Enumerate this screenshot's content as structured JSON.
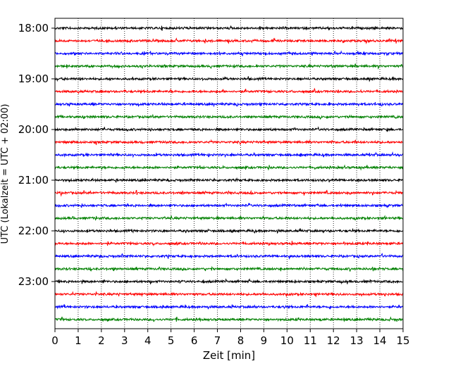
{
  "chart_data": {
    "type": "line",
    "title": "",
    "xlabel": "Zeit  [min]",
    "ylabel": "UTC (Lokalzeit = UTC + 02:00)",
    "xlim": [
      0,
      15
    ],
    "x_ticks": [
      0,
      1,
      2,
      3,
      4,
      5,
      6,
      7,
      8,
      9,
      10,
      11,
      12,
      13,
      14,
      15
    ],
    "y_start_time": "18:00",
    "trace_interval_minutes": 15,
    "y_tick_labels": [
      "18:00",
      "19:00",
      "20:00",
      "21:00",
      "22:00",
      "23:00"
    ],
    "grid": {
      "vertical_dotted": true
    },
    "trace_colors": [
      "#000000",
      "#ff0000",
      "#0000ff",
      "#008000"
    ],
    "traces": [
      {
        "start": "18:00",
        "color": "#000000"
      },
      {
        "start": "18:15",
        "color": "#ff0000"
      },
      {
        "start": "18:30",
        "color": "#0000ff"
      },
      {
        "start": "18:45",
        "color": "#008000"
      },
      {
        "start": "19:00",
        "color": "#000000"
      },
      {
        "start": "19:15",
        "color": "#ff0000"
      },
      {
        "start": "19:30",
        "color": "#0000ff"
      },
      {
        "start": "19:45",
        "color": "#008000"
      },
      {
        "start": "20:00",
        "color": "#000000"
      },
      {
        "start": "20:15",
        "color": "#ff0000"
      },
      {
        "start": "20:30",
        "color": "#0000ff"
      },
      {
        "start": "20:45",
        "color": "#008000"
      },
      {
        "start": "21:00",
        "color": "#000000"
      },
      {
        "start": "21:15",
        "color": "#ff0000"
      },
      {
        "start": "21:30",
        "color": "#0000ff"
      },
      {
        "start": "21:45",
        "color": "#008000"
      },
      {
        "start": "22:00",
        "color": "#000000"
      },
      {
        "start": "22:15",
        "color": "#ff0000"
      },
      {
        "start": "22:30",
        "color": "#0000ff"
      },
      {
        "start": "22:45",
        "color": "#008000"
      },
      {
        "start": "23:00",
        "color": "#000000"
      },
      {
        "start": "23:15",
        "color": "#ff0000"
      },
      {
        "start": "23:30",
        "color": "#0000ff"
      },
      {
        "start": "23:45",
        "color": "#008000"
      }
    ]
  }
}
